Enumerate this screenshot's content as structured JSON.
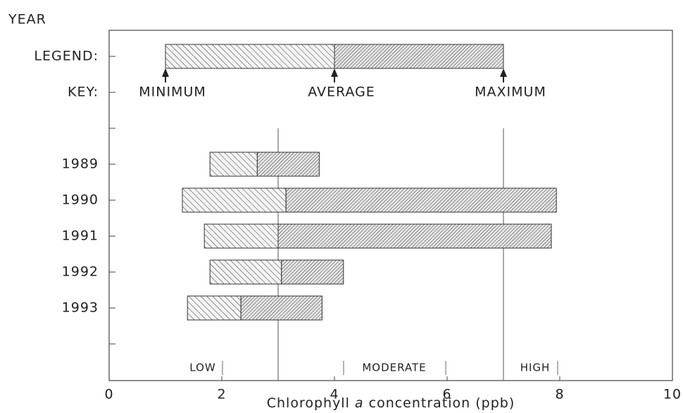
{
  "chart_data": {
    "type": "range_bar",
    "title": "YEAR",
    "x_label": [
      "Chlorophyll ",
      "a",
      " concentration (ppb)"
    ],
    "categories": [
      "LEGEND:",
      "KEY:",
      null,
      "1989",
      "1990",
      "1991",
      "1992",
      "1993",
      null
    ],
    "series": [
      {
        "name": "MINIMUM",
        "values": [
          1.0,
          null,
          null,
          1.79,
          1.3,
          1.69,
          1.79,
          1.39,
          null
        ]
      },
      {
        "name": "AVERAGE",
        "values": [
          4.0,
          null,
          null,
          2.63,
          3.14,
          3.0,
          3.06,
          2.34,
          null
        ]
      },
      {
        "name": "MAXIMUM",
        "values": [
          7.0,
          null,
          null,
          3.73,
          7.94,
          7.85,
          4.16,
          3.78,
          null
        ]
      }
    ],
    "reference_lines": [
      3,
      7
    ],
    "regions": [
      "LOW",
      "MODERATE",
      "HIGH"
    ],
    "xlim": [
      0,
      10
    ],
    "xticks": [
      0,
      2,
      4,
      6,
      8,
      10
    ]
  }
}
